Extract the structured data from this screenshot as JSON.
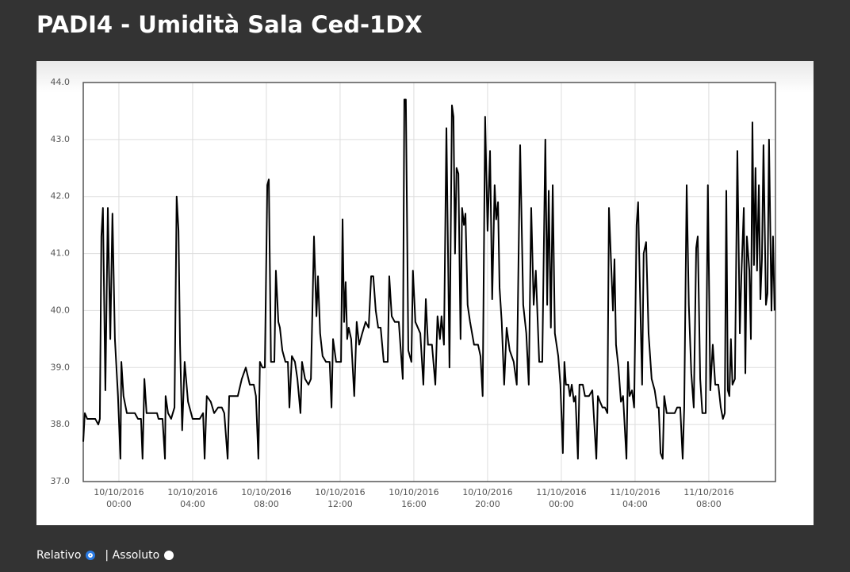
{
  "chart_data": {
    "type": "line",
    "title": "PADI4 - Umidità Sala Ced-1DX",
    "color": "#000000",
    "grid": true,
    "xlim": [
      "2016-10-09T22:04",
      "2016-10-11T11:37"
    ],
    "xticks": [
      {
        "value": "2016-10-10T00:00",
        "label": "10/10/2016\n00:00"
      },
      {
        "value": "2016-10-10T04:00",
        "label": "10/10/2016\n04:00"
      },
      {
        "value": "2016-10-10T08:00",
        "label": "10/10/2016\n08:00"
      },
      {
        "value": "2016-10-10T12:00",
        "label": "10/10/2016\n12:00"
      },
      {
        "value": "2016-10-10T16:00",
        "label": "10/10/2016\n16:00"
      },
      {
        "value": "2016-10-10T20:00",
        "label": "10/10/2016\n20:00"
      },
      {
        "value": "2016-10-11T00:00",
        "label": "11/10/2016\n00:00"
      },
      {
        "value": "2016-10-11T04:00",
        "label": "11/10/2016\n04:00"
      },
      {
        "value": "2016-10-11T08:00",
        "label": "11/10/2016\n08:00"
      }
    ],
    "ylim": [
      37,
      44
    ],
    "yticks": [
      {
        "value": 37,
        "label": "37.0"
      },
      {
        "value": 38,
        "label": "38.0"
      },
      {
        "value": 39,
        "label": "39.0"
      },
      {
        "value": 40,
        "label": "40.0"
      },
      {
        "value": 41,
        "label": "41.0"
      },
      {
        "value": 42,
        "label": "42.0"
      },
      {
        "value": 43,
        "label": "43.0"
      },
      {
        "value": 44,
        "label": "44.0"
      }
    ],
    "x": [
      "2016-10-09T22:04",
      "2016-10-09T22:09",
      "2016-10-09T22:17",
      "2016-10-09T22:43",
      "2016-10-09T22:53",
      "2016-10-09T22:58",
      "2016-10-09T23:03",
      "2016-10-09T23:08",
      "2016-10-09T23:16",
      "2016-10-09T23:24",
      "2016-10-09T23:32",
      "2016-10-09T23:39",
      "2016-10-09T23:47",
      "2016-10-09T23:57",
      "2016-10-10T00:05",
      "2016-10-10T00:08",
      "2016-10-10T00:15",
      "2016-10-10T00:26",
      "2016-10-10T00:52",
      "2016-10-10T01:02",
      "2016-10-10T01:12",
      "2016-10-10T01:17",
      "2016-10-10T01:23",
      "2016-10-10T01:30",
      "2016-10-10T02:04",
      "2016-10-10T02:09",
      "2016-10-10T02:22",
      "2016-10-10T02:30",
      "2016-10-10T02:32",
      "2016-10-10T02:40",
      "2016-10-10T02:50",
      "2016-10-10T03:01",
      "2016-10-10T03:08",
      "2016-10-10T03:14",
      "2016-10-10T03:19",
      "2016-10-10T03:26",
      "2016-10-10T03:34",
      "2016-10-10T03:45",
      "2016-10-10T04:00",
      "2016-10-10T04:23",
      "2016-10-10T04:34",
      "2016-10-10T04:39",
      "2016-10-10T04:46",
      "2016-10-10T04:59",
      "2016-10-10T05:10",
      "2016-10-10T05:23",
      "2016-10-10T05:35",
      "2016-10-10T05:43",
      "2016-10-10T05:54",
      "2016-10-10T05:59",
      "2016-10-10T06:14",
      "2016-10-10T06:27",
      "2016-10-10T06:40",
      "2016-10-10T06:53",
      "2016-10-10T07:06",
      "2016-10-10T07:19",
      "2016-10-10T07:26",
      "2016-10-10T07:34",
      "2016-10-10T07:39",
      "2016-10-10T07:47",
      "2016-10-10T07:55",
      "2016-10-10T08:03",
      "2016-10-10T08:08",
      "2016-10-10T08:15",
      "2016-10-10T08:26",
      "2016-10-10T08:31",
      "2016-10-10T08:39",
      "2016-10-10T08:44",
      "2016-10-10T08:52",
      "2016-10-10T09:02",
      "2016-10-10T09:10",
      "2016-10-10T09:15",
      "2016-10-10T09:23",
      "2016-10-10T09:33",
      "2016-10-10T09:41",
      "2016-10-10T09:51",
      "2016-10-10T09:56",
      "2016-10-10T10:06",
      "2016-10-10T10:17",
      "2016-10-10T10:25",
      "2016-10-10T10:35",
      "2016-10-10T10:43",
      "2016-10-10T10:48",
      "2016-10-10T10:55",
      "2016-10-10T11:03",
      "2016-10-10T11:14",
      "2016-10-10T11:26",
      "2016-10-10T11:32",
      "2016-10-10T11:37",
      "2016-10-10T11:47",
      "2016-10-10T12:03",
      "2016-10-10T12:08",
      "2016-10-10T12:13",
      "2016-10-10T12:18",
      "2016-10-10T12:23",
      "2016-10-10T12:28",
      "2016-10-10T12:36",
      "2016-10-10T12:46",
      "2016-10-10T12:54",
      "2016-10-10T13:02",
      "2016-10-10T13:12",
      "2016-10-10T13:23",
      "2016-10-10T13:33",
      "2016-10-10T13:41",
      "2016-10-10T13:48",
      "2016-10-10T13:56",
      "2016-10-10T14:04",
      "2016-10-10T14:12",
      "2016-10-10T14:22",
      "2016-10-10T14:35",
      "2016-10-10T14:40",
      "2016-10-10T14:48",
      "2016-10-10T14:58",
      "2016-10-10T15:11",
      "2016-10-10T15:24",
      "2016-10-10T15:29",
      "2016-10-10T15:34",
      "2016-10-10T15:42",
      "2016-10-10T15:52",
      "2016-10-10T15:57",
      "2016-10-10T16:05",
      "2016-10-10T16:21",
      "2016-10-10T16:31",
      "2016-10-10T16:39",
      "2016-10-10T16:46",
      "2016-10-10T16:59",
      "2016-10-10T17:10",
      "2016-10-10T17:17",
      "2016-10-10T17:25",
      "2016-10-10T17:30",
      "2016-10-10T17:38",
      "2016-10-10T17:46",
      "2016-10-10T17:56",
      "2016-10-10T18:04",
      "2016-10-10T18:09",
      "2016-10-10T18:14",
      "2016-10-10T18:19",
      "2016-10-10T18:25",
      "2016-10-10T18:32",
      "2016-10-10T18:37",
      "2016-10-10T18:43",
      "2016-10-10T18:48",
      "2016-10-10T18:55",
      "2016-10-10T19:03",
      "2016-10-10T19:16",
      "2016-10-10T19:29",
      "2016-10-10T19:37",
      "2016-10-10T19:44",
      "2016-10-10T19:52",
      "2016-10-10T20:00",
      "2016-10-10T20:08",
      "2016-10-10T20:15",
      "2016-10-10T20:23",
      "2016-10-10T20:28",
      "2016-10-10T20:34",
      "2016-10-10T20:39",
      "2016-10-10T20:46",
      "2016-10-10T20:54",
      "2016-10-10T21:02",
      "2016-10-10T21:12",
      "2016-10-10T21:25",
      "2016-10-10T21:35",
      "2016-10-10T21:46",
      "2016-10-10T21:56",
      "2016-10-10T22:06",
      "2016-10-10T22:14",
      "2016-10-10T22:22",
      "2016-10-10T22:30",
      "2016-10-10T22:37",
      "2016-10-10T22:48",
      "2016-10-10T22:58",
      "2016-10-10T23:08",
      "2016-10-10T23:14",
      "2016-10-10T23:19",
      "2016-10-10T23:26",
      "2016-10-10T23:32",
      "2016-10-10T23:39",
      "2016-10-10T23:50",
      "2016-10-10T23:57",
      "2016-10-11T00:05",
      "2016-10-11T00:10",
      "2016-10-11T00:15",
      "2016-10-11T00:23",
      "2016-10-11T00:28",
      "2016-10-11T00:34",
      "2016-10-11T00:41",
      "2016-10-11T00:46",
      "2016-10-11T00:54",
      "2016-10-11T00:59",
      "2016-10-11T01:10",
      "2016-10-11T01:17",
      "2016-10-11T01:30",
      "2016-10-11T01:41",
      "2016-10-11T01:54",
      "2016-10-11T01:59",
      "2016-10-11T02:06",
      "2016-10-11T02:14",
      "2016-10-11T02:22",
      "2016-10-11T02:30",
      "2016-10-11T02:35",
      "2016-10-11T02:43",
      "2016-10-11T02:48",
      "2016-10-11T02:53",
      "2016-10-11T02:58",
      "2016-10-11T03:06",
      "2016-10-11T03:14",
      "2016-10-11T03:21",
      "2016-10-11T03:32",
      "2016-10-11T03:37",
      "2016-10-11T03:42",
      "2016-10-11T03:50",
      "2016-10-11T03:57",
      "2016-10-11T04:05",
      "2016-10-11T04:10",
      "2016-10-11T04:15",
      "2016-10-11T04:23",
      "2016-10-11T04:28",
      "2016-10-11T04:36",
      "2016-10-11T04:44",
      "2016-10-11T04:54",
      "2016-10-11T05:04",
      "2016-10-11T05:12",
      "2016-10-11T05:17",
      "2016-10-11T05:23",
      "2016-10-11T05:30",
      "2016-10-11T05:35",
      "2016-10-11T05:43",
      "2016-10-11T05:59",
      "2016-10-11T06:09",
      "2016-10-11T06:17",
      "2016-10-11T06:27",
      "2016-10-11T06:35",
      "2016-10-11T06:40",
      "2016-10-11T06:48",
      "2016-10-11T06:55",
      "2016-10-11T07:03",
      "2016-10-11T07:11",
      "2016-10-11T07:19",
      "2016-10-11T07:24",
      "2016-10-11T07:32",
      "2016-10-11T07:39",
      "2016-10-11T07:50",
      "2016-10-11T07:57",
      "2016-10-11T08:05",
      "2016-10-11T08:13",
      "2016-10-11T08:21",
      "2016-10-11T08:31",
      "2016-10-11T08:39",
      "2016-10-11T08:46",
      "2016-10-11T08:52",
      "2016-10-11T08:57",
      "2016-10-11T09:02",
      "2016-10-11T09:07",
      "2016-10-11T09:12",
      "2016-10-11T09:17",
      "2016-10-11T09:25",
      "2016-10-11T09:33",
      "2016-10-11T09:41",
      "2016-10-11T09:46",
      "2016-10-11T09:54",
      "2016-10-11T09:59",
      "2016-10-11T10:04",
      "2016-10-11T10:12",
      "2016-10-11T10:17",
      "2016-10-11T10:22",
      "2016-10-11T10:27",
      "2016-10-11T10:32",
      "2016-10-11T10:37",
      "2016-10-11T10:43",
      "2016-10-11T10:48",
      "2016-10-11T10:53",
      "2016-10-11T10:58",
      "2016-10-11T11:06",
      "2016-10-11T11:11",
      "2016-10-11T11:16",
      "2016-10-11T11:24",
      "2016-10-11T11:29",
      "2016-10-11T11:34"
    ],
    "values": [
      37.7,
      38.2,
      38.1,
      38.1,
      38.0,
      38.1,
      41.3,
      41.8,
      38.6,
      41.8,
      39.5,
      41.7,
      39.5,
      38.5,
      37.4,
      39.1,
      38.5,
      38.2,
      38.2,
      38.1,
      38.1,
      37.4,
      38.8,
      38.2,
      38.2,
      38.1,
      38.1,
      37.4,
      38.5,
      38.2,
      38.1,
      38.3,
      42.0,
      41.4,
      39.4,
      37.9,
      39.1,
      38.4,
      38.1,
      38.1,
      38.2,
      37.4,
      38.5,
      38.4,
      38.2,
      38.3,
      38.3,
      38.2,
      37.4,
      38.5,
      38.5,
      38.5,
      38.8,
      39.0,
      38.7,
      38.7,
      38.5,
      37.4,
      39.1,
      39.0,
      39.0,
      42.2,
      42.3,
      39.1,
      39.1,
      40.7,
      39.8,
      39.7,
      39.3,
      39.1,
      39.1,
      38.3,
      39.2,
      39.1,
      38.8,
      38.2,
      39.1,
      38.8,
      38.7,
      38.8,
      41.3,
      39.9,
      40.6,
      39.6,
      39.2,
      39.1,
      39.1,
      38.3,
      39.5,
      39.1,
      39.1,
      41.6,
      39.8,
      40.5,
      39.5,
      39.7,
      39.5,
      38.5,
      39.8,
      39.4,
      39.6,
      39.8,
      39.7,
      40.6,
      40.6,
      40.0,
      39.7,
      39.7,
      39.1,
      39.1,
      40.6,
      39.9,
      39.8,
      39.8,
      38.8,
      43.7,
      43.7,
      39.3,
      39.1,
      40.7,
      39.8,
      39.6,
      38.7,
      40.2,
      39.4,
      39.4,
      38.7,
      39.9,
      39.5,
      39.9,
      39.4,
      43.2,
      39.0,
      43.6,
      43.4,
      41.0,
      42.5,
      42.4,
      39.5,
      41.8,
      41.5,
      41.7,
      40.1,
      39.8,
      39.4,
      39.4,
      39.2,
      38.5,
      43.4,
      41.4,
      42.8,
      40.2,
      42.2,
      41.6,
      41.9,
      40.4,
      39.8,
      38.7,
      39.7,
      39.3,
      39.1,
      38.7,
      42.9,
      40.1,
      39.6,
      38.7,
      41.8,
      40.1,
      40.7,
      39.1,
      39.1,
      43.0,
      40.1,
      42.1,
      39.7,
      42.2,
      39.6,
      39.2,
      38.7,
      37.5,
      39.1,
      38.7,
      38.7,
      38.5,
      38.7,
      38.4,
      38.5,
      37.4,
      38.7,
      38.7,
      38.5,
      38.5,
      38.6,
      37.4,
      38.5,
      38.4,
      38.3,
      38.3,
      38.2,
      41.8,
      40.7,
      40.0,
      40.9,
      39.4,
      39.0,
      38.4,
      38.5,
      37.4,
      39.1,
      38.5,
      38.6,
      38.3,
      41.5,
      41.9,
      40.6,
      38.7,
      41.0,
      41.2,
      39.6,
      38.8,
      38.6,
      38.3,
      38.3,
      37.5,
      37.4,
      38.5,
      38.2,
      38.2,
      38.2,
      38.3,
      38.3,
      37.4,
      38.3,
      42.2,
      40.1,
      38.9,
      38.3,
      41.1,
      41.3,
      38.8,
      38.2,
      38.2,
      42.2,
      38.6,
      39.4,
      38.7,
      38.7,
      38.3,
      38.1,
      38.2,
      42.1,
      38.6,
      38.5,
      39.5,
      38.7,
      38.8,
      42.8,
      39.6,
      40.6,
      41.8,
      38.9,
      41.3,
      40.7,
      39.5,
      43.3,
      40.8,
      42.5,
      40.7,
      42.2,
      40.2,
      40.9,
      42.9,
      40.1,
      40.3,
      43.0,
      40.0,
      41.3,
      40.0
    ]
  },
  "controls": {
    "relative": "Relativo",
    "absolute": "| Assoluto"
  }
}
